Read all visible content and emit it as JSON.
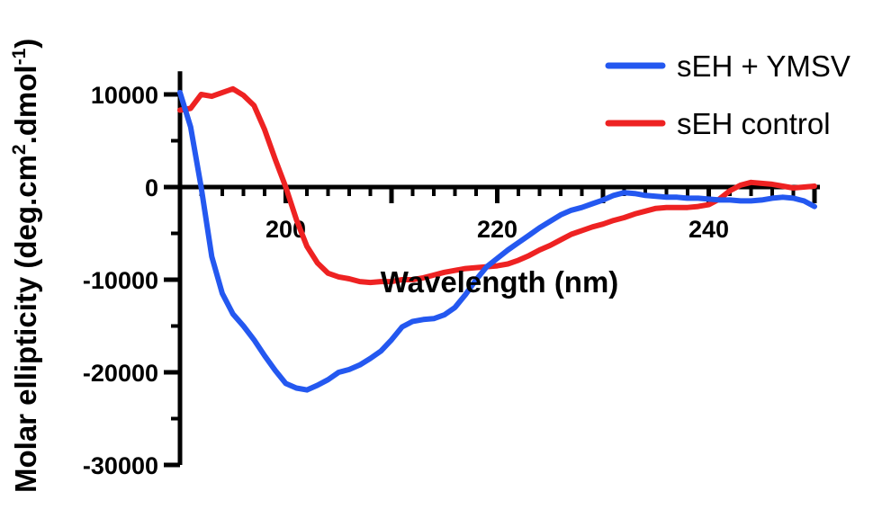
{
  "chart_data": {
    "type": "line",
    "title": "",
    "xlabel": "Wavelength (nm)",
    "ylabel": "Molar ellipticity (deg.cm²·dmol⁻¹)",
    "ylabel_parts": [
      "Molar ellipticity (deg.cm",
      "2",
      ".dmol",
      "-1",
      ")"
    ],
    "xlim": [
      190,
      250
    ],
    "ylim": [
      -30000,
      10000
    ],
    "x_ticks": [
      200,
      220,
      240
    ],
    "y_ticks": [
      10000,
      0,
      -10000,
      -20000,
      -30000
    ],
    "x_tick_labels": [
      "200",
      "220",
      "240"
    ],
    "y_tick_labels": [
      "10000",
      "0",
      "-10000",
      "-20000",
      "-30000"
    ],
    "grid": false,
    "legend_position": "top-right",
    "series": [
      {
        "name": "sEH + YMSV",
        "color": "#2458f0",
        "x": [
          190,
          191,
          192,
          193,
          194,
          195,
          196,
          197,
          198,
          199,
          200,
          201,
          202,
          203,
          204,
          205,
          206,
          207,
          208,
          209,
          210,
          211,
          212,
          213,
          214,
          215,
          216,
          217,
          218,
          219,
          220,
          221,
          222,
          223,
          224,
          225,
          226,
          227,
          228,
          229,
          230,
          231,
          232,
          233,
          234,
          235,
          236,
          237,
          238,
          239,
          240,
          241,
          242,
          243,
          244,
          245,
          246,
          247,
          248,
          249,
          250
        ],
        "y": [
          10200,
          6500,
          0,
          -7500,
          -11500,
          -13700,
          -15000,
          -16500,
          -18200,
          -19800,
          -21200,
          -21700,
          -21900,
          -21400,
          -20800,
          -20000,
          -19700,
          -19200,
          -18500,
          -17700,
          -16500,
          -15100,
          -14500,
          -14300,
          -14200,
          -13800,
          -13000,
          -11600,
          -10000,
          -8600,
          -7700,
          -6800,
          -6000,
          -5200,
          -4400,
          -3700,
          -3000,
          -2500,
          -2200,
          -1800,
          -1400,
          -900,
          -600,
          -700,
          -900,
          -1000,
          -1100,
          -1100,
          -1200,
          -1200,
          -1300,
          -1400,
          -1400,
          -1500,
          -1500,
          -1400,
          -1200,
          -1100,
          -1200,
          -1500,
          -2100
        ]
      },
      {
        "name": "sEH control",
        "color": "#ee2222",
        "x": [
          190,
          191,
          192,
          193,
          194,
          195,
          196,
          197,
          198,
          199,
          200,
          201,
          202,
          203,
          204,
          205,
          206,
          207,
          208,
          209,
          210,
          211,
          212,
          213,
          214,
          215,
          216,
          217,
          218,
          219,
          220,
          221,
          222,
          223,
          224,
          225,
          226,
          227,
          228,
          229,
          230,
          231,
          232,
          233,
          234,
          235,
          236,
          237,
          238,
          239,
          240,
          241,
          242,
          243,
          244,
          245,
          246,
          247,
          248,
          249,
          250
        ],
        "y": [
          8300,
          8500,
          10000,
          9800,
          10200,
          10600,
          9900,
          8800,
          6200,
          3000,
          0,
          -3500,
          -6400,
          -8200,
          -9300,
          -9700,
          -9900,
          -10200,
          -10300,
          -10200,
          -10200,
          -10000,
          -10000,
          -9800,
          -9500,
          -9200,
          -9000,
          -8800,
          -8700,
          -8600,
          -8500,
          -8300,
          -7900,
          -7400,
          -6800,
          -6300,
          -5700,
          -5100,
          -4700,
          -4300,
          -4000,
          -3600,
          -3300,
          -2900,
          -2600,
          -2300,
          -2200,
          -2200,
          -2200,
          -2100,
          -1900,
          -1300,
          -400,
          200,
          500,
          400,
          300,
          100,
          -100,
          0,
          100
        ]
      }
    ]
  }
}
